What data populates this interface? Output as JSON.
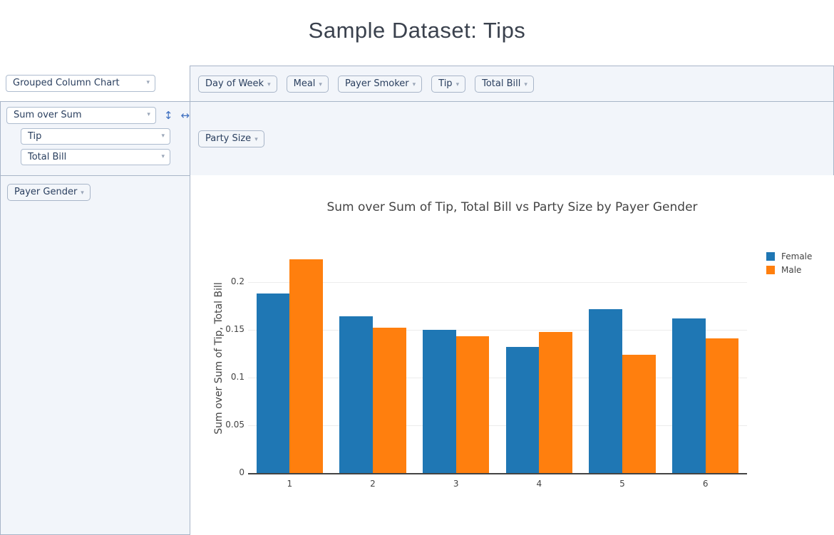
{
  "page": {
    "title": "Sample Dataset: Tips"
  },
  "icons": {
    "dropdown_triangle": "▾",
    "row_order": "↕",
    "col_order": "↔"
  },
  "controls": {
    "renderer": {
      "value": "Grouped Column Chart"
    },
    "aggregator": {
      "value": "Sum over Sum",
      "arg1": "Tip",
      "arg2": "Total Bill"
    },
    "unused_attributes": [
      "Day of Week",
      "Meal",
      "Payer Smoker",
      "Tip",
      "Total Bill"
    ],
    "col_attributes": [
      "Party Size"
    ],
    "row_attributes": [
      "Payer Gender"
    ]
  },
  "colors": {
    "female": "#1f77b4",
    "male": "#ff7f0e",
    "panel_bg": "#f2f5fa",
    "panel_border": "#a8b5c8",
    "ui_text": "#2a3f5f",
    "chart_text": "#444444"
  },
  "chart_data": {
    "type": "bar",
    "title": "Sum over Sum of Tip, Total Bill vs Party Size by Payer Gender",
    "ylabel": "Sum over Sum of Tip, Total Bill",
    "xlabel": "",
    "categories": [
      "1",
      "2",
      "3",
      "4",
      "5",
      "6"
    ],
    "series": [
      {
        "name": "Female",
        "color": "#1f77b4",
        "values": [
          0.188,
          0.164,
          0.15,
          0.132,
          0.172,
          0.162
        ]
      },
      {
        "name": "Male",
        "color": "#ff7f0e",
        "values": [
          0.224,
          0.152,
          0.143,
          0.148,
          0.124,
          0.141
        ]
      }
    ],
    "yticks": [
      0,
      0.05,
      0.1,
      0.15,
      0.2
    ],
    "ylim": [
      0,
      0.24
    ],
    "grid": true,
    "legend_position": "right"
  }
}
